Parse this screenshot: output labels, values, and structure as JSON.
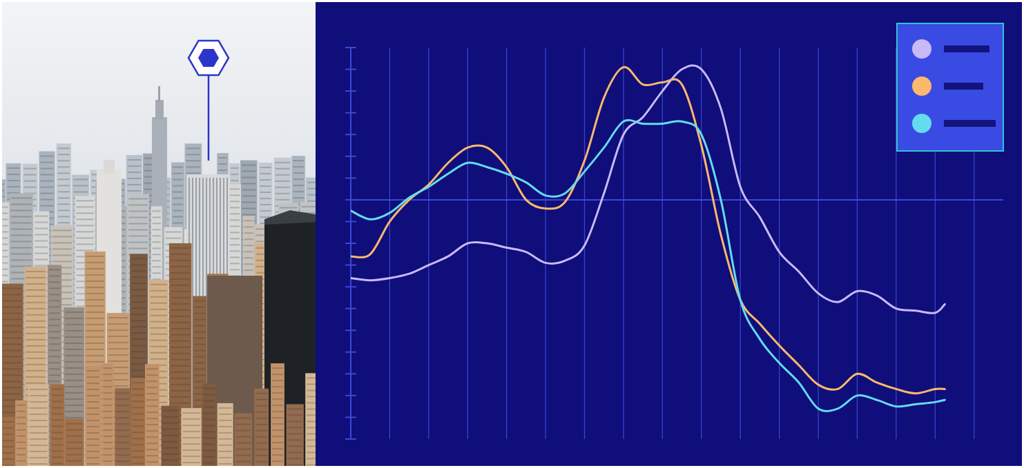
{
  "chart_data": {
    "type": "line",
    "x": [
      0,
      0.5,
      1,
      1.5,
      2,
      2.5,
      3,
      3.5,
      4,
      4.5,
      5,
      5.5,
      6,
      6.5,
      7,
      7.5,
      8,
      8.5,
      9,
      9.5,
      10,
      10.5,
      11,
      11.5,
      12,
      12.5,
      13,
      13.5,
      14,
      14.5,
      15,
      15.25
    ],
    "series": [
      {
        "color": "#c9b9f7",
        "values": [
          -3.6,
          -3.7,
          -3.6,
          -3.4,
          -3.0,
          -2.6,
          -2.0,
          -2.0,
          -2.2,
          -2.4,
          -2.9,
          -2.8,
          -2.1,
          0.3,
          3.0,
          3.8,
          5.0,
          6.0,
          6.0,
          4.2,
          0.6,
          -0.8,
          -2.4,
          -3.3,
          -4.3,
          -4.7,
          -4.2,
          -4.4,
          -5.0,
          -5.1,
          -5.2,
          -4.8
        ]
      },
      {
        "color": "#fdb96b",
        "values": [
          -2.6,
          -2.5,
          -1.0,
          0.0,
          0.7,
          1.7,
          2.4,
          2.4,
          1.5,
          0.0,
          -0.4,
          -0.1,
          1.8,
          4.7,
          6.1,
          5.3,
          5.4,
          5.3,
          2.5,
          -1.6,
          -4.6,
          -5.7,
          -6.7,
          -7.6,
          -8.5,
          -8.7,
          -8.0,
          -8.4,
          -8.7,
          -8.9,
          -8.7,
          -8.7
        ]
      },
      {
        "color": "#63dcf0",
        "values": [
          -0.5,
          -0.9,
          -0.6,
          0.1,
          0.6,
          1.2,
          1.7,
          1.5,
          1.2,
          0.8,
          0.2,
          0.3,
          1.3,
          2.4,
          3.6,
          3.5,
          3.5,
          3.6,
          3.0,
          0.0,
          -4.6,
          -6.4,
          -7.5,
          -8.4,
          -9.6,
          -9.6,
          -9.0,
          -9.2,
          -9.5,
          -9.4,
          -9.3,
          -9.2
        ]
      }
    ],
    "xlim": [
      0,
      16.75
    ],
    "xticks": [
      0,
      1,
      2,
      3,
      4,
      5,
      6,
      7,
      8,
      9,
      10,
      11,
      12,
      13,
      14,
      15,
      16
    ],
    "ylim": [
      -11,
      7
    ],
    "yticks": [
      -11,
      -10,
      -9,
      -8,
      -7,
      -6,
      -5,
      -4,
      -3,
      -2,
      -1,
      0,
      1,
      2,
      3,
      4,
      5,
      6,
      7
    ],
    "grid": true,
    "legend": "top-right",
    "tick_labels": false
  }
}
